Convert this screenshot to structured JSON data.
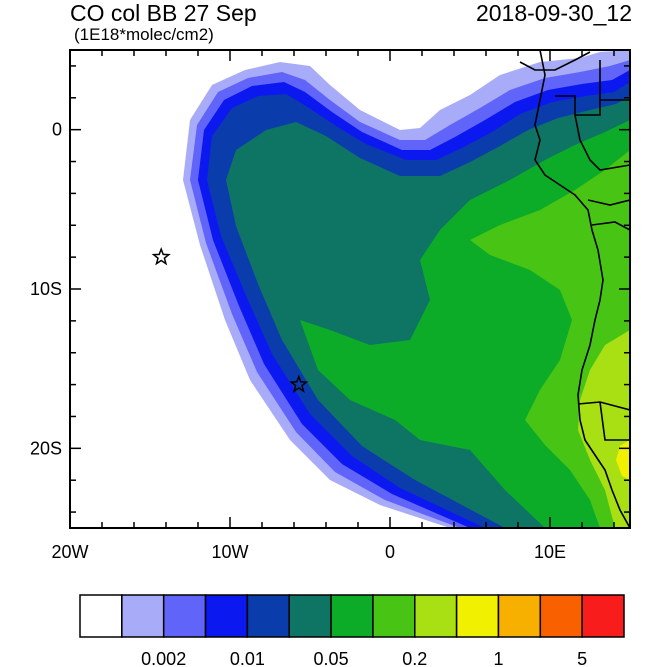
{
  "header": {
    "title": "CO col BB 27 Sep",
    "units": "(1E18*molec/cm2)",
    "datetime": "2018-09-30_12"
  },
  "map": {
    "lon_range": [
      -20,
      15
    ],
    "lat_range": [
      -25,
      5
    ],
    "x_ticks": [
      {
        "lon": -20,
        "label": "20W"
      },
      {
        "lon": -10,
        "label": "10W"
      },
      {
        "lon": 0,
        "label": "0"
      },
      {
        "lon": 10,
        "label": "10E"
      }
    ],
    "y_ticks": [
      {
        "lat": 0,
        "label": "0"
      },
      {
        "lat": -10,
        "label": "10S"
      },
      {
        "lat": -20,
        "label": "20S"
      }
    ],
    "markers": [
      {
        "name": "star",
        "lon": -14.3,
        "lat": -8.0
      },
      {
        "name": "star",
        "lon": -5.7,
        "lat": -16.0
      }
    ]
  },
  "colorbar": {
    "colors": [
      "#ffffff",
      "#a8acf8",
      "#6064f8",
      "#0c18f0",
      "#0a3cac",
      "#0e7464",
      "#0cac28",
      "#48c414",
      "#a8e014",
      "#f0f000",
      "#f8b000",
      "#f86000",
      "#f81c1c"
    ],
    "labels": [
      {
        "boundary": 2,
        "text": "0.002"
      },
      {
        "boundary": 4,
        "text": "0.01"
      },
      {
        "boundary": 6,
        "text": "0.05"
      },
      {
        "boundary": 8,
        "text": "0.2"
      },
      {
        "boundary": 10,
        "text": "1"
      },
      {
        "boundary": 12,
        "text": "5"
      }
    ]
  }
}
